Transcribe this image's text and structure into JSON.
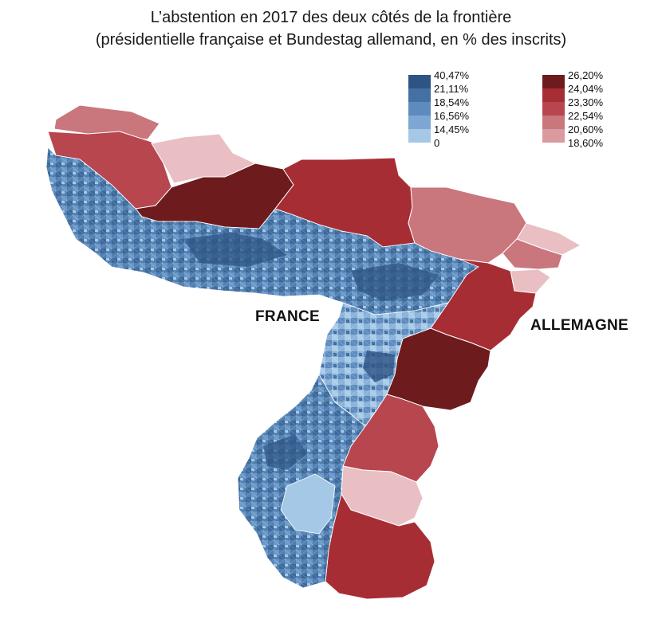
{
  "title": {
    "line1": "L’abstention en 2017 des deux côtés de la frontière",
    "line2": "(présidentielle française et Bundestag allemand, en % des inscrits)"
  },
  "legend_france": [
    {
      "label": "40,47%",
      "color": "#2e5484"
    },
    {
      "label": "21,11%",
      "color": "#4570a3"
    },
    {
      "label": "18,54%",
      "color": "#5e8bbd"
    },
    {
      "label": "16,56%",
      "color": "#7da7d2"
    },
    {
      "label": "14,45%",
      "color": "#a4c8e6"
    },
    {
      "label": "0",
      "color": "#c6e0f2"
    }
  ],
  "legend_germany": [
    {
      "label": "26,20%",
      "color": "#6e1b1e"
    },
    {
      "label": "24,04%",
      "color": "#a72d35"
    },
    {
      "label": "23,30%",
      "color": "#b8464f"
    },
    {
      "label": "22,54%",
      "color": "#c9767d"
    },
    {
      "label": "20,60%",
      "color": "#d99aa0"
    },
    {
      "label": "18,60%",
      "color": "#e9bfc3"
    }
  ],
  "countries": {
    "france": "FRANCE",
    "germany": "ALLEMAGNE"
  }
}
